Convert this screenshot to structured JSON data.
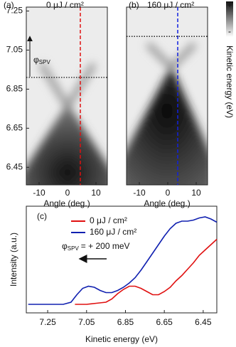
{
  "chart_data": [
    {
      "type": "image",
      "label": "(a)",
      "title": "0 μJ / cm²",
      "title_color": "#e01010",
      "xlabel": "Angle (deg.)",
      "xlim": [
        -14.5,
        14
      ],
      "xticks": [
        -10,
        0,
        10
      ],
      "ylim": [
        6.36,
        7.27
      ],
      "yticks": [
        7.25,
        7.05,
        6.85,
        6.65,
        6.45
      ],
      "vline": 4.5,
      "hline": 6.91,
      "annotation": {
        "symbol": "φ",
        "subscript": "SPV"
      }
    },
    {
      "type": "image",
      "label": "(b)",
      "title": "160 μJ / cm²",
      "title_color": "#1020e0",
      "xlabel": "Angle (deg.)",
      "xlim": [
        -14.5,
        14
      ],
      "xticks": [
        -10,
        0,
        10
      ],
      "ylim": [
        6.36,
        7.27
      ],
      "vline": 3.5,
      "hline": 7.12,
      "colorbar": {
        "label": "Kinetic energy (eV)",
        "max_label": "+",
        "min_label": "-"
      }
    },
    {
      "type": "line",
      "label": "(c)",
      "xlabel": "Kinetic energy (eV)",
      "ylabel": "Intensity (a.u.)",
      "xlim": [
        7.36,
        6.38
      ],
      "xticks": [
        7.25,
        7.05,
        6.85,
        6.65,
        6.45
      ],
      "ylim": [
        0,
        1
      ],
      "series": [
        {
          "name": "0 μJ / cm²",
          "color": "#e01010",
          "x": [
            7.11,
            7.05,
            7.0,
            6.95,
            6.92,
            6.89,
            6.86,
            6.83,
            6.8,
            6.77,
            6.74,
            6.71,
            6.68,
            6.65,
            6.62,
            6.59,
            6.56,
            6.53,
            6.5,
            6.47,
            6.44,
            6.41,
            6.38
          ],
          "values": [
            0.08,
            0.08,
            0.09,
            0.1,
            0.13,
            0.18,
            0.22,
            0.25,
            0.25,
            0.23,
            0.2,
            0.17,
            0.17,
            0.2,
            0.24,
            0.3,
            0.35,
            0.41,
            0.47,
            0.54,
            0.59,
            0.64,
            0.69
          ]
        },
        {
          "name": "160 μJ / cm²",
          "color": "#1020b0",
          "x": [
            7.35,
            7.25,
            7.17,
            7.13,
            7.1,
            7.07,
            7.04,
            7.01,
            6.98,
            6.95,
            6.92,
            6.89,
            6.86,
            6.83,
            6.8,
            6.77,
            6.74,
            6.71,
            6.68,
            6.65,
            6.62,
            6.59,
            6.56,
            6.53,
            6.5,
            6.47,
            6.44,
            6.41,
            6.38
          ],
          "values": [
            0.08,
            0.08,
            0.08,
            0.1,
            0.17,
            0.23,
            0.25,
            0.24,
            0.21,
            0.19,
            0.19,
            0.21,
            0.24,
            0.28,
            0.33,
            0.4,
            0.48,
            0.56,
            0.64,
            0.72,
            0.79,
            0.84,
            0.86,
            0.86,
            0.87,
            0.89,
            0.9,
            0.88,
            0.85
          ]
        }
      ],
      "annotation": {
        "symbol": "φ",
        "subscript": "SPV",
        "text": "= + 200 meV"
      }
    }
  ]
}
